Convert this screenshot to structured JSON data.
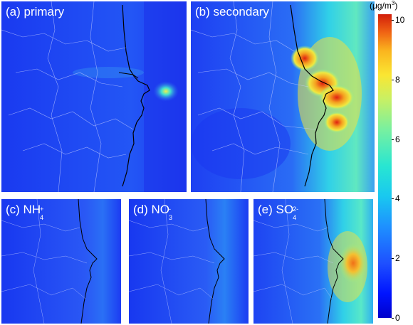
{
  "panels": {
    "a": {
      "label": "(a) primary"
    },
    "b": {
      "label": "(b) secondary"
    },
    "c": {
      "label_prefix": "(c) ",
      "species": "NH",
      "sub": "4",
      "sup": "+"
    },
    "d": {
      "label_prefix": "(d) ",
      "species": "NO",
      "sub": "3",
      "sup": "-"
    },
    "e": {
      "label_prefix": "(e) ",
      "species": "SO",
      "sub": "4",
      "sup": "2-"
    }
  },
  "colorbar": {
    "unit_prefix": "(μg/m",
    "unit_sup": "3",
    "unit_suffix": ")",
    "ticks": [
      "10",
      "8",
      "6",
      "4",
      "2",
      "0"
    ],
    "min": 0,
    "max": 10,
    "colors": [
      "#0000cc",
      "#1e50ff",
      "#19c8f0",
      "#78f0a0",
      "#fae632",
      "#f06414",
      "#d21e0a"
    ]
  }
}
